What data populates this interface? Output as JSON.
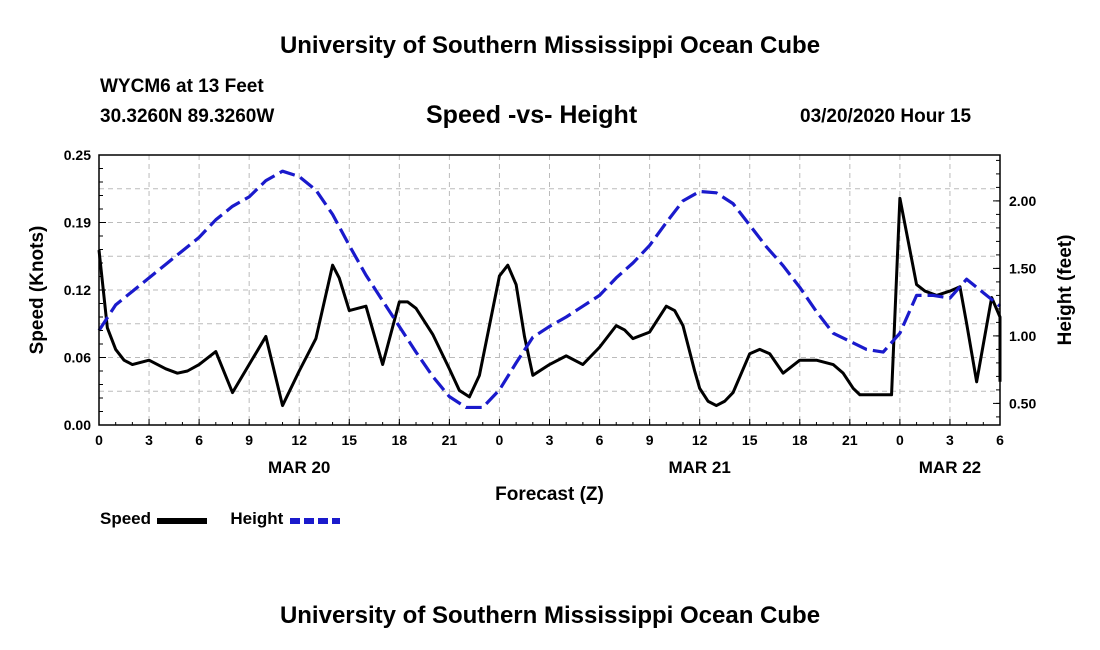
{
  "header": {
    "title": "University of Southern Mississippi Ocean Cube",
    "station": "WYCM6 at 13 Feet",
    "coords": "30.3260N 89.3260W",
    "chart_title": "Speed -vs- Height",
    "timestamp": "03/20/2020 Hour 15"
  },
  "footer": {
    "title": "University of Southern Mississippi Ocean Cube"
  },
  "legend": {
    "speed_label": "Speed",
    "height_label": "Height",
    "speed_color": "#000000",
    "height_color": "#1a1acc"
  },
  "chart_data": {
    "type": "line",
    "title": "Speed -vs- Height",
    "xlabel": "Forecast (Z)",
    "ylabel_left": "Speed (Knots)",
    "ylabel_right": "Height (feet)",
    "xlim": [
      0,
      54
    ],
    "ylim_left": [
      0,
      0.25
    ],
    "ylim_right": [
      0.34,
      2.34
    ],
    "x_ticks": [
      {
        "x": 0,
        "label": "0"
      },
      {
        "x": 3,
        "label": "3"
      },
      {
        "x": 6,
        "label": "6"
      },
      {
        "x": 9,
        "label": "9"
      },
      {
        "x": 12,
        "label": "12"
      },
      {
        "x": 15,
        "label": "15"
      },
      {
        "x": 18,
        "label": "18"
      },
      {
        "x": 21,
        "label": "21"
      },
      {
        "x": 24,
        "label": "0"
      },
      {
        "x": 27,
        "label": "3"
      },
      {
        "x": 30,
        "label": "6"
      },
      {
        "x": 33,
        "label": "9"
      },
      {
        "x": 36,
        "label": "12"
      },
      {
        "x": 39,
        "label": "15"
      },
      {
        "x": 42,
        "label": "18"
      },
      {
        "x": 45,
        "label": "21"
      },
      {
        "x": 48,
        "label": "0"
      },
      {
        "x": 51,
        "label": "3"
      },
      {
        "x": 54,
        "label": "6"
      }
    ],
    "date_labels": [
      {
        "x": 12,
        "label": "MAR 20"
      },
      {
        "x": 36,
        "label": "MAR 21"
      },
      {
        "x": 51,
        "label": "MAR 22"
      }
    ],
    "y_ticks_left": [
      {
        "v": 0.0,
        "label": "0.00"
      },
      {
        "v": 0.0625,
        "label": "0.06"
      },
      {
        "v": 0.125,
        "label": "0.12"
      },
      {
        "v": 0.1875,
        "label": "0.19"
      },
      {
        "v": 0.25,
        "label": "0.25"
      }
    ],
    "y_ticks_right": [
      {
        "v": 0.5,
        "label": "0.50"
      },
      {
        "v": 1.0,
        "label": "1.00"
      },
      {
        "v": 1.5,
        "label": "1.50"
      },
      {
        "v": 2.0,
        "label": "2.00"
      }
    ],
    "grid": true,
    "series": [
      {
        "name": "Speed",
        "axis": "left",
        "color": "#000000",
        "dash": "solid",
        "points": [
          [
            0,
            0.162
          ],
          [
            0.5,
            0.09
          ],
          [
            1,
            0.07
          ],
          [
            1.5,
            0.06
          ],
          [
            2,
            0.056
          ],
          [
            3,
            0.06
          ],
          [
            4,
            0.052
          ],
          [
            4.7,
            0.048
          ],
          [
            5.3,
            0.05
          ],
          [
            6,
            0.056
          ],
          [
            7,
            0.068
          ],
          [
            8,
            0.03
          ],
          [
            9,
            0.056
          ],
          [
            10,
            0.082
          ],
          [
            11,
            0.018
          ],
          [
            12,
            0.05
          ],
          [
            13,
            0.08
          ],
          [
            14,
            0.148
          ],
          [
            14.4,
            0.136
          ],
          [
            15,
            0.106
          ],
          [
            16,
            0.11
          ],
          [
            17,
            0.056
          ],
          [
            18,
            0.114
          ],
          [
            18.5,
            0.114
          ],
          [
            19,
            0.108
          ],
          [
            20,
            0.084
          ],
          [
            21,
            0.052
          ],
          [
            21.6,
            0.032
          ],
          [
            22.2,
            0.026
          ],
          [
            22.8,
            0.046
          ],
          [
            24,
            0.138
          ],
          [
            24.5,
            0.148
          ],
          [
            25,
            0.13
          ],
          [
            25.5,
            0.082
          ],
          [
            26,
            0.046
          ],
          [
            27,
            0.056
          ],
          [
            28,
            0.064
          ],
          [
            29,
            0.056
          ],
          [
            30,
            0.072
          ],
          [
            31,
            0.092
          ],
          [
            31.5,
            0.088
          ],
          [
            32,
            0.08
          ],
          [
            33,
            0.086
          ],
          [
            34,
            0.11
          ],
          [
            34.5,
            0.106
          ],
          [
            35,
            0.092
          ],
          [
            35.7,
            0.05
          ],
          [
            36,
            0.034
          ],
          [
            36.5,
            0.022
          ],
          [
            37,
            0.018
          ],
          [
            37.5,
            0.022
          ],
          [
            38,
            0.03
          ],
          [
            39,
            0.066
          ],
          [
            39.6,
            0.07
          ],
          [
            40.2,
            0.066
          ],
          [
            41,
            0.048
          ],
          [
            42,
            0.06
          ],
          [
            43,
            0.06
          ],
          [
            44,
            0.056
          ],
          [
            44.6,
            0.048
          ],
          [
            45.2,
            0.034
          ],
          [
            45.6,
            0.028
          ],
          [
            47.5,
            0.028
          ],
          [
            48,
            0.21
          ],
          [
            49,
            0.13
          ],
          [
            49.5,
            0.124
          ],
          [
            50.2,
            0.12
          ],
          [
            51,
            0.124
          ],
          [
            51.6,
            0.128
          ],
          [
            52,
            0.094
          ],
          [
            52.6,
            0.04
          ],
          [
            53.5,
            0.118
          ],
          [
            54,
            0.1
          ],
          [
            54.3,
            0.04
          ]
        ]
      },
      {
        "name": "Height",
        "axis": "right",
        "color": "#1a1acc",
        "dash": "dashed",
        "points": [
          [
            0,
            1.04
          ],
          [
            1,
            1.23
          ],
          [
            2,
            1.33
          ],
          [
            3,
            1.43
          ],
          [
            4,
            1.53
          ],
          [
            5,
            1.63
          ],
          [
            6,
            1.73
          ],
          [
            7,
            1.86
          ],
          [
            8,
            1.96
          ],
          [
            9,
            2.03
          ],
          [
            10,
            2.15
          ],
          [
            11,
            2.22
          ],
          [
            12,
            2.18
          ],
          [
            13,
            2.08
          ],
          [
            14,
            1.9
          ],
          [
            15,
            1.67
          ],
          [
            16,
            1.45
          ],
          [
            17,
            1.26
          ],
          [
            18,
            1.07
          ],
          [
            19,
            0.88
          ],
          [
            20,
            0.7
          ],
          [
            21,
            0.55
          ],
          [
            22,
            0.47
          ],
          [
            23,
            0.47
          ],
          [
            24,
            0.6
          ],
          [
            25,
            0.8
          ],
          [
            26,
            0.99
          ],
          [
            27,
            1.07
          ],
          [
            28,
            1.14
          ],
          [
            29,
            1.22
          ],
          [
            30,
            1.3
          ],
          [
            31,
            1.43
          ],
          [
            32,
            1.54
          ],
          [
            33,
            1.67
          ],
          [
            34,
            1.84
          ],
          [
            35,
            2.0
          ],
          [
            36,
            2.07
          ],
          [
            37,
            2.06
          ],
          [
            38,
            1.98
          ],
          [
            39,
            1.82
          ],
          [
            40,
            1.66
          ],
          [
            41,
            1.52
          ],
          [
            42,
            1.36
          ],
          [
            43,
            1.18
          ],
          [
            44,
            1.02
          ],
          [
            45,
            0.96
          ],
          [
            46,
            0.9
          ],
          [
            47,
            0.88
          ],
          [
            48,
            1.02
          ],
          [
            49,
            1.3
          ],
          [
            50,
            1.3
          ],
          [
            51,
            1.28
          ],
          [
            52,
            1.42
          ],
          [
            53,
            1.32
          ],
          [
            54,
            1.22
          ]
        ]
      }
    ]
  }
}
